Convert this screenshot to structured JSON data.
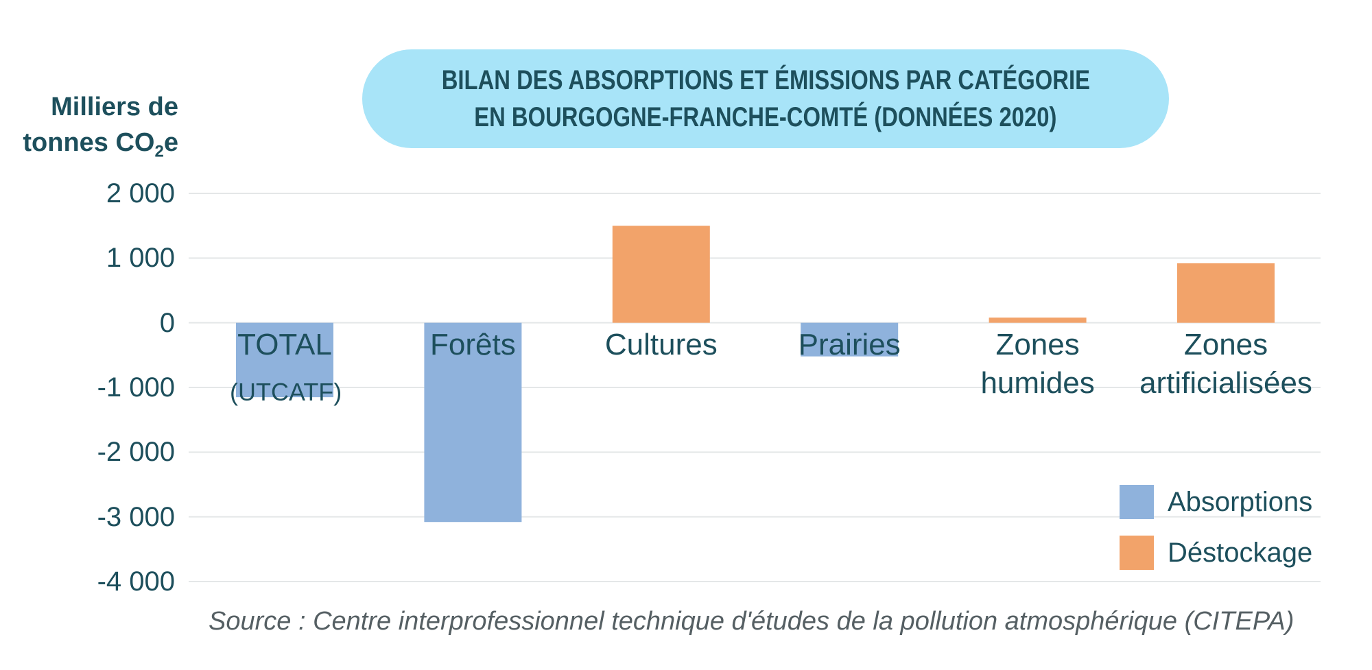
{
  "chart_data": {
    "type": "bar",
    "title": "BILAN DES ABSORPTIONS ET ÉMISSIONS PAR CATÉGORIE EN BOURGOGNE-FRANCHE-COMTÉ (DONNÉES 2020)",
    "title_lines": [
      "BILAN DES ABSORPTIONS ET ÉMISSIONS PAR CATÉGORIE",
      "EN BOURGOGNE-FRANCHE-COMTÉ (DONNÉES 2020)"
    ],
    "ylabel_line1": "Milliers de",
    "ylabel_line2_pre": "tonnes CO",
    "ylabel_line2_sub": "2",
    "ylabel_line2_post": "e",
    "ylim": [
      -4000,
      2000
    ],
    "yticks": [
      2000,
      1000,
      0,
      -1000,
      -2000,
      -3000,
      -4000
    ],
    "ytick_labels": [
      "2 000",
      "1 000",
      "0",
      "-1 000",
      "-2 000",
      "-3 000",
      "-4 000"
    ],
    "grid": true,
    "categories": [
      "TOTAL",
      "Forêts",
      "Cultures",
      "Prairies",
      "Zones humides",
      "Zones artificialisées"
    ],
    "category_sublabels": [
      "(UTCATF)",
      "",
      "",
      "",
      "",
      ""
    ],
    "values": [
      -1150,
      -3080,
      1500,
      -520,
      80,
      920
    ],
    "bar_series": [
      "Absorptions",
      "Absorptions",
      "Déstockage",
      "Absorptions",
      "Déstockage",
      "Déstockage"
    ],
    "legend": [
      {
        "name": "Absorptions",
        "color": "#8fb2dc"
      },
      {
        "name": "Déstockage",
        "color": "#f2a36a"
      }
    ],
    "legend_position": "bottom-right",
    "source": "Source : Centre interprofessionnel technique d'études de la pollution atmosphérique (CITEPA)"
  }
}
